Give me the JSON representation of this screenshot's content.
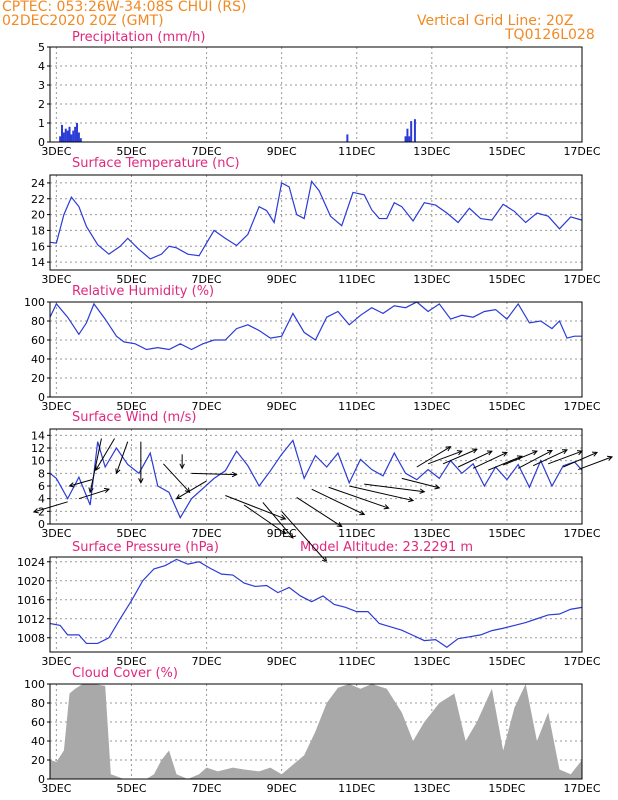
{
  "header": {
    "line1_left": "CPTEC:   053:26W-34:08S   CHUI (RS)",
    "line2_left": "02DEC2020 20Z (GMT)",
    "line2_right": "Vertical Grid Line: 20Z",
    "line3_right": "TQ0126L028"
  },
  "colors": {
    "header": "#f08a24",
    "title": "#e0287f",
    "line": "#2b3bd6",
    "cloud": "#a9a9a9",
    "grid": "#9a9a9a"
  },
  "x_ticks": [
    "3DEC",
    "5DEC",
    "7DEC",
    "9DEC",
    "11DEC",
    "13DEC",
    "15DEC",
    "17DEC"
  ],
  "chart_data": [
    {
      "type": "bar",
      "title": "Precipitation (mm/h)",
      "ylim": [
        0,
        5
      ],
      "yticks": [
        "0",
        "1",
        "2",
        "3",
        "4",
        "5"
      ],
      "xlim": [
        2.83,
        17.0
      ],
      "points": [
        [
          3.1,
          0.3
        ],
        [
          3.15,
          0.9
        ],
        [
          3.2,
          0.5
        ],
        [
          3.25,
          0.7
        ],
        [
          3.3,
          0.6
        ],
        [
          3.35,
          0.8
        ],
        [
          3.4,
          0.4
        ],
        [
          3.45,
          0.6
        ],
        [
          3.5,
          0.8
        ],
        [
          3.55,
          1.0
        ],
        [
          3.6,
          0.5
        ],
        [
          3.65,
          0.2
        ],
        [
          10.75,
          0.4
        ],
        [
          12.3,
          0.3
        ],
        [
          12.35,
          0.7
        ],
        [
          12.4,
          0.3
        ],
        [
          12.45,
          1.1
        ],
        [
          12.55,
          1.2
        ]
      ]
    },
    {
      "type": "line",
      "title": "Surface Temperature (nC)",
      "ylim": [
        13,
        25
      ],
      "yticks": [
        "14",
        "16",
        "18",
        "20",
        "22",
        "24"
      ],
      "xlim": [
        2.83,
        17.0
      ],
      "points": [
        [
          2.83,
          16.5
        ],
        [
          3.0,
          16.4
        ],
        [
          3.2,
          20.0
        ],
        [
          3.4,
          22.2
        ],
        [
          3.6,
          21.0
        ],
        [
          3.8,
          18.5
        ],
        [
          4.1,
          16.2
        ],
        [
          4.4,
          15.0
        ],
        [
          4.7,
          16.0
        ],
        [
          4.9,
          17.0
        ],
        [
          5.2,
          15.6
        ],
        [
          5.5,
          14.4
        ],
        [
          5.8,
          15.0
        ],
        [
          6.0,
          16.0
        ],
        [
          6.2,
          15.8
        ],
        [
          6.5,
          15.0
        ],
        [
          6.8,
          14.8
        ],
        [
          7.0,
          16.4
        ],
        [
          7.2,
          18.0
        ],
        [
          7.5,
          17.0
        ],
        [
          7.8,
          16.1
        ],
        [
          8.1,
          17.5
        ],
        [
          8.4,
          21.0
        ],
        [
          8.6,
          20.5
        ],
        [
          8.8,
          19.0
        ],
        [
          9.0,
          24.0
        ],
        [
          9.2,
          23.5
        ],
        [
          9.4,
          20.0
        ],
        [
          9.6,
          19.5
        ],
        [
          9.8,
          24.2
        ],
        [
          10.0,
          23.0
        ],
        [
          10.3,
          19.8
        ],
        [
          10.6,
          18.6
        ],
        [
          10.9,
          22.8
        ],
        [
          11.2,
          22.5
        ],
        [
          11.4,
          20.6
        ],
        [
          11.6,
          19.5
        ],
        [
          11.8,
          19.5
        ],
        [
          12.0,
          21.5
        ],
        [
          12.2,
          21.0
        ],
        [
          12.5,
          19.2
        ],
        [
          12.8,
          21.5
        ],
        [
          13.1,
          21.2
        ],
        [
          13.4,
          20.2
        ],
        [
          13.7,
          19.0
        ],
        [
          14.0,
          20.8
        ],
        [
          14.3,
          19.5
        ],
        [
          14.6,
          19.3
        ],
        [
          14.9,
          21.3
        ],
        [
          15.2,
          20.4
        ],
        [
          15.5,
          19.0
        ],
        [
          15.8,
          20.2
        ],
        [
          16.1,
          19.8
        ],
        [
          16.4,
          18.2
        ],
        [
          16.7,
          19.7
        ],
        [
          17.0,
          19.3
        ]
      ]
    },
    {
      "type": "line",
      "title": "Relative Humidity (%)",
      "ylim": [
        0,
        100
      ],
      "yticks": [
        "0",
        "20",
        "40",
        "60",
        "80",
        "100"
      ],
      "xlim": [
        2.83,
        17.0
      ],
      "points": [
        [
          2.83,
          84
        ],
        [
          3.0,
          98
        ],
        [
          3.3,
          84
        ],
        [
          3.6,
          66
        ],
        [
          3.8,
          78
        ],
        [
          4.0,
          98
        ],
        [
          4.3,
          82
        ],
        [
          4.6,
          64
        ],
        [
          4.8,
          58
        ],
        [
          5.1,
          56
        ],
        [
          5.4,
          50
        ],
        [
          5.7,
          52
        ],
        [
          6.0,
          50
        ],
        [
          6.3,
          56
        ],
        [
          6.6,
          50
        ],
        [
          6.9,
          56
        ],
        [
          7.2,
          60
        ],
        [
          7.5,
          60
        ],
        [
          7.8,
          72
        ],
        [
          8.1,
          76
        ],
        [
          8.4,
          70
        ],
        [
          8.7,
          62
        ],
        [
          9.0,
          64
        ],
        [
          9.3,
          88
        ],
        [
          9.6,
          68
        ],
        [
          9.9,
          60
        ],
        [
          10.2,
          84
        ],
        [
          10.5,
          90
        ],
        [
          10.8,
          76
        ],
        [
          11.1,
          86
        ],
        [
          11.4,
          94
        ],
        [
          11.7,
          88
        ],
        [
          12.0,
          96
        ],
        [
          12.3,
          94
        ],
        [
          12.6,
          100
        ],
        [
          12.9,
          90
        ],
        [
          13.2,
          98
        ],
        [
          13.5,
          82
        ],
        [
          13.8,
          86
        ],
        [
          14.1,
          84
        ],
        [
          14.4,
          90
        ],
        [
          14.7,
          92
        ],
        [
          15.0,
          82
        ],
        [
          15.3,
          98
        ],
        [
          15.6,
          78
        ],
        [
          15.9,
          80
        ],
        [
          16.2,
          72
        ],
        [
          16.4,
          80
        ],
        [
          16.6,
          62
        ],
        [
          16.8,
          64
        ],
        [
          17.0,
          64
        ]
      ]
    },
    {
      "type": "line",
      "title": "Surface Wind (m/s)",
      "ylim": [
        0,
        15
      ],
      "yticks": [
        "0",
        "2",
        "4",
        "6",
        "8",
        "10",
        "12",
        "14"
      ],
      "xlim": [
        2.83,
        17.0
      ],
      "points": [
        [
          2.83,
          8.0
        ],
        [
          3.0,
          7.2
        ],
        [
          3.3,
          4.0
        ],
        [
          3.6,
          7.4
        ],
        [
          3.9,
          3.0
        ],
        [
          4.1,
          13.0
        ],
        [
          4.3,
          9.0
        ],
        [
          4.6,
          12.0
        ],
        [
          4.9,
          9.4
        ],
        [
          5.2,
          8.0
        ],
        [
          5.5,
          11.2
        ],
        [
          5.7,
          6.0
        ],
        [
          6.0,
          5.0
        ],
        [
          6.3,
          1.0
        ],
        [
          6.6,
          4.0
        ],
        [
          6.9,
          5.6
        ],
        [
          7.2,
          7.2
        ],
        [
          7.5,
          8.4
        ],
        [
          7.8,
          11.5
        ],
        [
          8.1,
          9.2
        ],
        [
          8.4,
          6.0
        ],
        [
          8.7,
          8.4
        ],
        [
          9.0,
          11.0
        ],
        [
          9.3,
          13.2
        ],
        [
          9.6,
          7.2
        ],
        [
          9.9,
          10.8
        ],
        [
          10.2,
          9.0
        ],
        [
          10.5,
          11.2
        ],
        [
          10.8,
          6.5
        ],
        [
          11.1,
          10.2
        ],
        [
          11.4,
          8.6
        ],
        [
          11.7,
          7.6
        ],
        [
          12.0,
          11.2
        ],
        [
          12.3,
          8.0
        ],
        [
          12.6,
          7.0
        ],
        [
          12.9,
          8.6
        ],
        [
          13.2,
          7.2
        ],
        [
          13.5,
          10.0
        ],
        [
          13.8,
          8.0
        ],
        [
          14.1,
          9.5
        ],
        [
          14.4,
          6.0
        ],
        [
          14.7,
          9.0
        ],
        [
          15.0,
          7.0
        ],
        [
          15.3,
          9.4
        ],
        [
          15.6,
          5.8
        ],
        [
          15.9,
          10.0
        ],
        [
          16.2,
          6.0
        ],
        [
          16.5,
          9.2
        ],
        [
          16.8,
          9.8
        ],
        [
          17.0,
          8.5
        ]
      ],
      "wind_vectors": [
        [
          3.3,
          3.5,
          -0.9,
          -1.6
        ],
        [
          3.6,
          4.0,
          0.8,
          1.5
        ],
        [
          3.95,
          7.0,
          -0.6,
          -1.0
        ],
        [
          4.2,
          13.5,
          -0.3,
          -8.5
        ],
        [
          4.55,
          13.5,
          -0.5,
          -5.0
        ],
        [
          4.9,
          13.0,
          -0.3,
          -5.0
        ],
        [
          5.25,
          13.0,
          0.0,
          -6.5
        ],
        [
          5.85,
          9.5,
          0.7,
          -4.5
        ],
        [
          6.35,
          11.0,
          0.0,
          -2.2
        ],
        [
          6.6,
          8.0,
          1.2,
          -0.2
        ],
        [
          7.0,
          6.8,
          -0.8,
          -2.8
        ],
        [
          7.5,
          4.5,
          1.6,
          -3.7
        ],
        [
          8.0,
          3.0,
          1.1,
          -4.5
        ],
        [
          8.5,
          3.4,
          0.8,
          -5.6
        ],
        [
          9.0,
          2.0,
          1.2,
          -8.0
        ],
        [
          9.4,
          4.2,
          1.2,
          -4.6
        ],
        [
          9.8,
          5.5,
          1.4,
          -4.0
        ],
        [
          10.25,
          5.8,
          1.6,
          -3.3
        ],
        [
          10.8,
          6.0,
          1.7,
          -2.3
        ],
        [
          11.2,
          6.3,
          1.6,
          -1.2
        ],
        [
          12.2,
          7.2,
          1.0,
          -1.5
        ],
        [
          12.6,
          9.0,
          0.9,
          3.2
        ],
        [
          12.9,
          9.5,
          0.9,
          2.0
        ],
        [
          13.3,
          9.5,
          0.9,
          2.3
        ],
        [
          13.7,
          9.0,
          0.9,
          2.5
        ],
        [
          14.1,
          8.8,
          0.9,
          2.5
        ],
        [
          14.5,
          8.5,
          0.9,
          2.2
        ],
        [
          14.9,
          9.3,
          0.9,
          2.2
        ],
        [
          15.3,
          8.8,
          0.9,
          2.8
        ],
        [
          15.7,
          9.2,
          0.9,
          2.5
        ],
        [
          16.1,
          9.5,
          0.9,
          2.0
        ],
        [
          16.5,
          9.0,
          0.9,
          2.3
        ],
        [
          16.9,
          8.6,
          0.9,
          2.0
        ]
      ]
    },
    {
      "type": "line",
      "title": "Surface Pressure (hPa)",
      "subtitle": "Model Altitude: 23.2291 m",
      "ylim": [
        1005,
        1025
      ],
      "yticks": [
        "1008",
        "1012",
        "1016",
        "1020",
        "1024"
      ],
      "xlim": [
        2.83,
        17.0
      ],
      "points": [
        [
          2.83,
          1011.0
        ],
        [
          3.1,
          1010.6
        ],
        [
          3.3,
          1008.6
        ],
        [
          3.6,
          1008.6
        ],
        [
          3.8,
          1006.8
        ],
        [
          4.1,
          1006.8
        ],
        [
          4.4,
          1008.0
        ],
        [
          4.7,
          1012.0
        ],
        [
          5.0,
          1015.8
        ],
        [
          5.3,
          1020.0
        ],
        [
          5.6,
          1022.5
        ],
        [
          5.9,
          1023.2
        ],
        [
          6.2,
          1024.5
        ],
        [
          6.5,
          1023.5
        ],
        [
          6.8,
          1024.0
        ],
        [
          7.1,
          1022.6
        ],
        [
          7.4,
          1021.4
        ],
        [
          7.7,
          1021.2
        ],
        [
          8.0,
          1019.5
        ],
        [
          8.3,
          1018.8
        ],
        [
          8.6,
          1019.0
        ],
        [
          8.9,
          1017.5
        ],
        [
          9.2,
          1018.6
        ],
        [
          9.5,
          1016.8
        ],
        [
          9.8,
          1015.6
        ],
        [
          10.1,
          1016.8
        ],
        [
          10.4,
          1015.0
        ],
        [
          10.7,
          1014.4
        ],
        [
          11.0,
          1013.5
        ],
        [
          11.3,
          1013.5
        ],
        [
          11.6,
          1011.0
        ],
        [
          11.9,
          1010.3
        ],
        [
          12.2,
          1009.6
        ],
        [
          12.5,
          1008.5
        ],
        [
          12.8,
          1007.4
        ],
        [
          13.1,
          1007.6
        ],
        [
          13.4,
          1006.0
        ],
        [
          13.7,
          1007.8
        ],
        [
          14.0,
          1008.2
        ],
        [
          14.3,
          1008.6
        ],
        [
          14.6,
          1009.5
        ],
        [
          14.9,
          1010.0
        ],
        [
          15.2,
          1010.6
        ],
        [
          15.5,
          1011.2
        ],
        [
          15.8,
          1012.0
        ],
        [
          16.1,
          1012.8
        ],
        [
          16.4,
          1013.0
        ],
        [
          16.7,
          1014.0
        ],
        [
          17.0,
          1014.4
        ]
      ]
    },
    {
      "type": "area",
      "title": "Cloud Cover (%)",
      "ylim": [
        0,
        100
      ],
      "yticks": [
        "0",
        "20",
        "40",
        "60",
        "80",
        "100"
      ],
      "xlim": [
        2.83,
        17.0
      ],
      "points": [
        [
          2.83,
          20
        ],
        [
          3.0,
          18
        ],
        [
          3.2,
          30
        ],
        [
          3.35,
          90
        ],
        [
          3.5,
          95
        ],
        [
          3.7,
          100
        ],
        [
          4.0,
          100
        ],
        [
          4.3,
          98
        ],
        [
          4.45,
          5
        ],
        [
          4.8,
          0
        ],
        [
          5.4,
          0
        ],
        [
          5.6,
          5
        ],
        [
          5.8,
          20
        ],
        [
          6.0,
          30
        ],
        [
          6.2,
          5
        ],
        [
          6.5,
          0
        ],
        [
          6.8,
          5
        ],
        [
          7.0,
          12
        ],
        [
          7.3,
          8
        ],
        [
          7.7,
          12
        ],
        [
          8.0,
          10
        ],
        [
          8.4,
          8
        ],
        [
          8.7,
          12
        ],
        [
          9.0,
          5
        ],
        [
          9.3,
          15
        ],
        [
          9.6,
          25
        ],
        [
          9.9,
          50
        ],
        [
          10.2,
          80
        ],
        [
          10.5,
          96
        ],
        [
          10.8,
          100
        ],
        [
          11.1,
          95
        ],
        [
          11.4,
          100
        ],
        [
          11.8,
          95
        ],
        [
          12.2,
          70
        ],
        [
          12.5,
          40
        ],
        [
          12.8,
          60
        ],
        [
          13.2,
          80
        ],
        [
          13.6,
          90
        ],
        [
          13.9,
          40
        ],
        [
          14.2,
          60
        ],
        [
          14.6,
          95
        ],
        [
          14.9,
          30
        ],
        [
          15.2,
          75
        ],
        [
          15.5,
          100
        ],
        [
          15.8,
          40
        ],
        [
          16.1,
          70
        ],
        [
          16.4,
          10
        ],
        [
          16.7,
          5
        ],
        [
          17.0,
          20
        ]
      ]
    }
  ]
}
